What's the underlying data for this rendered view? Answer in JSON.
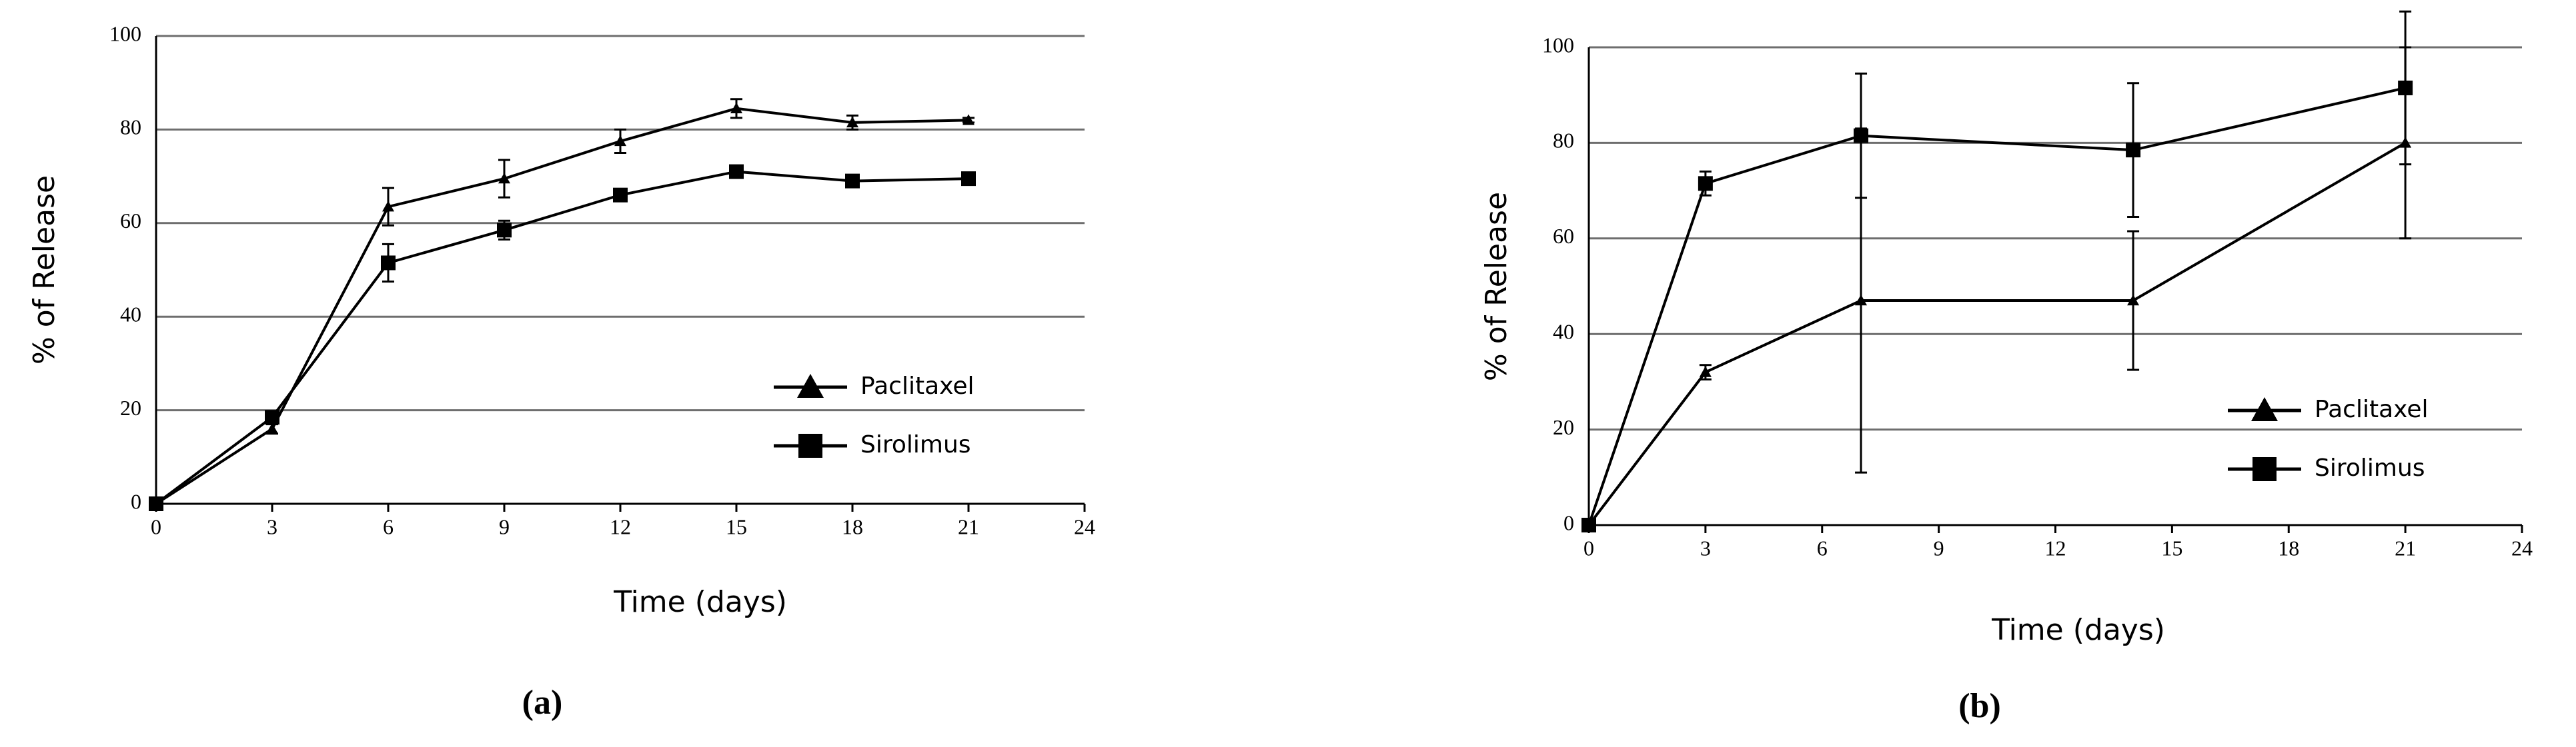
{
  "chart_data": [
    {
      "type": "line",
      "caption": "(a)",
      "x_label": "Time (days)",
      "y_label": "% of Release",
      "xlim": [
        0,
        24
      ],
      "xticks": [
        0,
        3,
        6,
        9,
        12,
        15,
        18,
        21,
        24
      ],
      "ylim": [
        0,
        100
      ],
      "yticks": [
        0,
        20,
        40,
        60,
        80,
        100
      ],
      "grid": true,
      "series": [
        {
          "name": "Paclitaxel",
          "color": "#000000",
          "marker": "triangle",
          "x": [
            0,
            3,
            6,
            9,
            12,
            15,
            18,
            21
          ],
          "values": [
            0,
            16,
            63.5,
            69.5,
            77.5,
            84.5,
            81.5,
            82
          ],
          "errors": [
            0,
            1,
            4,
            4,
            2.5,
            2,
            1.5,
            0.5
          ]
        },
        {
          "name": "Sirolimus",
          "color": "#000000",
          "marker": "square",
          "x": [
            0,
            3,
            6,
            9,
            12,
            15,
            18,
            21
          ],
          "values": [
            0,
            18.5,
            51.5,
            58.5,
            66,
            71,
            69,
            69.5
          ],
          "errors": [
            0,
            1,
            4,
            2,
            0.5,
            0.5,
            0.5,
            0.5
          ]
        }
      ]
    },
    {
      "type": "line",
      "caption": "(b)",
      "x_label": "Time (days)",
      "y_label": "% of Release",
      "xlim": [
        0,
        24
      ],
      "xticks": [
        0,
        3,
        6,
        9,
        12,
        15,
        18,
        21,
        24
      ],
      "ylim": [
        0,
        100
      ],
      "yticks": [
        0,
        20,
        40,
        60,
        80,
        100
      ],
      "grid": true,
      "series": [
        {
          "name": "Paclitaxel",
          "color": "#000000",
          "marker": "triangle",
          "x": [
            0,
            3,
            7,
            14,
            21
          ],
          "values": [
            0,
            32,
            47,
            47,
            80
          ],
          "errors": [
            0,
            1.5,
            36,
            14.5,
            20
          ]
        },
        {
          "name": "Sirolimus",
          "color": "#000000",
          "marker": "square",
          "x": [
            0,
            3,
            7,
            14,
            21
          ],
          "values": [
            0,
            71.5,
            81.5,
            78.5,
            91.5
          ],
          "errors": [
            0,
            2.5,
            13,
            14,
            16
          ]
        }
      ]
    }
  ]
}
